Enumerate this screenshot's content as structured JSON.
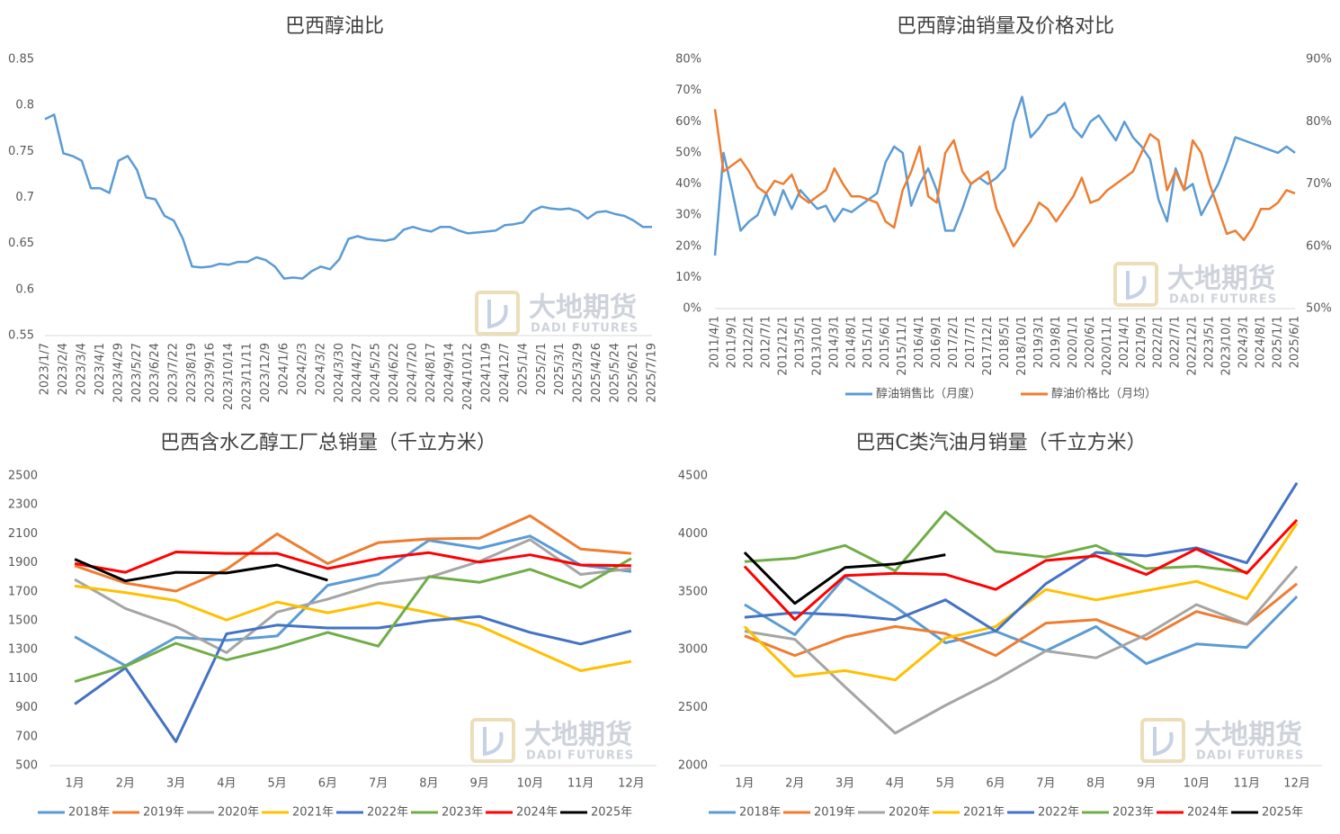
{
  "watermark": {
    "cn": "大地期货",
    "en": "DADI FUTURES"
  },
  "chart_data": [
    {
      "type": "line",
      "title": "巴西醇油比",
      "color": "#5b9bd5",
      "categories": [
        "2023/1/7",
        null,
        "2023/2/4",
        null,
        "2023/3/4",
        null,
        "2023/4/1",
        null,
        "2023/4/29",
        null,
        "2023/5/27",
        null,
        "2023/6/24",
        null,
        "2023/7/22",
        null,
        "2023/8/19",
        null,
        "2023/9/16",
        null,
        "2023/10/14",
        null,
        "2023/11/11",
        null,
        "2023/12/9",
        null,
        "2024/1/6",
        null,
        "2024/2/3",
        null,
        "2024/3/2",
        null,
        "2024/3/30",
        null,
        "2024/4/27",
        null,
        "2024/5/25",
        null,
        "2024/6/22",
        null,
        "2024/7/20",
        null,
        "2024/8/17",
        null,
        "2024/9/14",
        null,
        "2024/10/12",
        null,
        "2024/11/9",
        null,
        "2024/12/7",
        null,
        "2025/1/4",
        null,
        "2025/2/1",
        null,
        "2025/3/1",
        null,
        "2025/3/29",
        null,
        "2025/4/26",
        null,
        "2025/5/24",
        null,
        "2025/6/21",
        null,
        "2025/7/19"
      ],
      "values": [
        0.785,
        0.79,
        0.748,
        0.745,
        0.74,
        0.71,
        0.71,
        0.705,
        0.74,
        0.745,
        0.73,
        0.7,
        0.698,
        0.68,
        0.675,
        0.655,
        0.625,
        0.624,
        0.625,
        0.628,
        0.627,
        0.63,
        0.63,
        0.635,
        0.632,
        0.625,
        0.612,
        0.613,
        0.612,
        0.62,
        0.625,
        0.622,
        0.633,
        0.655,
        0.658,
        0.655,
        0.654,
        0.653,
        0.655,
        0.665,
        0.668,
        0.665,
        0.663,
        0.668,
        0.668,
        0.664,
        0.661,
        0.662,
        0.663,
        0.664,
        0.67,
        0.671,
        0.673,
        0.685,
        0.69,
        0.688,
        0.687,
        0.688,
        0.685,
        0.677,
        0.684,
        0.685,
        0.682,
        0.68,
        0.675,
        0.668,
        0.668
      ],
      "ylim": [
        0.55,
        0.85
      ],
      "yticks": [
        0.55,
        0.6,
        0.65,
        0.7,
        0.75,
        0.8,
        0.85
      ]
    },
    {
      "type": "line",
      "title": "巴西醇油销量及价格对比",
      "legend": "bottom",
      "categories": [
        "2011/4/1",
        null,
        "2011/9/1",
        null,
        "2012/2/1",
        null,
        "2012/7/1",
        null,
        "2012/12/1",
        null,
        "2013/5/1",
        null,
        "2013/10/1",
        null,
        "2014/3/1",
        null,
        "2014/8/1",
        null,
        "2015/1/1",
        null,
        "2015/6/1",
        null,
        "2015/11/1",
        null,
        "2016/4/1",
        null,
        "2016/9/1",
        null,
        "2017/2/1",
        null,
        "2017/7/1",
        null,
        "2017/12/1",
        null,
        "2018/5/1",
        null,
        "2018/10/1",
        null,
        "2019/3/1",
        null,
        "2019/8/1",
        null,
        "2020/1/1",
        null,
        "2020/6/1",
        null,
        "2020/11/1",
        null,
        "2021/4/1",
        null,
        "2021/9/1",
        null,
        "2022/2/1",
        null,
        "2022/7/1",
        null,
        "2022/12/1",
        null,
        "2023/5/1",
        null,
        "2023/10/1",
        null,
        "2024/3/1",
        null,
        "2024/8/1",
        null,
        "2025/1/1",
        null,
        "2025/6/1"
      ],
      "series": [
        {
          "name": "醇油销售比（月度）",
          "color": "#5b9bd5",
          "values": [
            17,
            50,
            38,
            25,
            28,
            30,
            37,
            30,
            38,
            32,
            38,
            35,
            32,
            33,
            28,
            32,
            31,
            33,
            35,
            37,
            47,
            52,
            50,
            33,
            40,
            45,
            38,
            25,
            25,
            32,
            40,
            42,
            40,
            42,
            45,
            60,
            68,
            55,
            58,
            62,
            63,
            66,
            58,
            55,
            60,
            62,
            58,
            54,
            60,
            55,
            52,
            48,
            35,
            28,
            45,
            38,
            40,
            30,
            35,
            40,
            47,
            55,
            54,
            53,
            52,
            51,
            50,
            52,
            50
          ]
        },
        {
          "name": "醇油价格比（月均）",
          "color": "#ed7d31",
          "axis": "y2",
          "values": [
            82,
            72,
            73,
            74,
            72,
            69.5,
            68.5,
            70.5,
            70,
            71.5,
            68,
            67,
            68,
            69,
            72.5,
            70,
            68,
            68,
            67.5,
            67,
            64,
            63,
            69,
            72,
            76,
            68,
            67,
            75,
            77,
            72,
            70,
            71,
            72,
            66,
            63,
            60,
            62,
            64,
            67,
            66,
            64,
            66,
            68,
            71,
            67,
            67.5,
            69,
            70,
            71,
            72,
            75,
            78,
            77,
            69,
            72,
            69,
            77,
            75,
            70,
            66,
            62,
            62.5,
            61,
            63,
            66,
            66,
            67,
            69,
            68.5
          ]
        }
      ],
      "ylim": [
        0,
        80
      ],
      "yticks": [
        {
          "value": 0,
          "label": "0%"
        },
        {
          "value": 10,
          "label": "10%"
        },
        {
          "value": 20,
          "label": "20%"
        },
        {
          "value": 30,
          "label": "30%"
        },
        {
          "value": 40,
          "label": "40%"
        },
        {
          "value": 50,
          "label": "50%"
        },
        {
          "value": 60,
          "label": "60%"
        },
        {
          "value": 70,
          "label": "70%"
        },
        {
          "value": 80,
          "label": "80%"
        }
      ],
      "y2lim": [
        50,
        90
      ],
      "y2ticks": [
        {
          "value": 50,
          "label": "50%"
        },
        {
          "value": 60,
          "label": "60%"
        },
        {
          "value": 70,
          "label": "70%"
        },
        {
          "value": 80,
          "label": "80%"
        },
        {
          "value": 90,
          "label": "90%"
        }
      ]
    },
    {
      "type": "line",
      "title": "巴西含水乙醇工厂总销量（千立方米）",
      "legend": "bottom",
      "categories": [
        "1月",
        "2月",
        "3月",
        "4月",
        "5月",
        "6月",
        "7月",
        "8月",
        "9月",
        "10月",
        "11月",
        "12月"
      ],
      "series": [
        {
          "name": "2018年",
          "color": "#5b9bd5",
          "values": [
            1390,
            1190,
            1385,
            1365,
            1395,
            1745,
            1820,
            2055,
            2000,
            2085,
            1885,
            1840
          ]
        },
        {
          "name": "2019年",
          "color": "#ed7d31",
          "values": [
            1880,
            1760,
            1705,
            1855,
            2100,
            1895,
            2040,
            2065,
            2070,
            2225,
            1995,
            1965
          ]
        },
        {
          "name": "2020年",
          "color": "#a5a5a5",
          "values": [
            1785,
            1585,
            1460,
            1280,
            1560,
            1650,
            1755,
            1800,
            1910,
            2060,
            1820,
            1860
          ]
        },
        {
          "name": "2021年",
          "color": "#ffc000",
          "values": [
            1740,
            1695,
            1640,
            1505,
            1630,
            1555,
            1625,
            1555,
            1465,
            1310,
            1155,
            1220
          ]
        },
        {
          "name": "2022年",
          "color": "#4472c4",
          "values": [
            925,
            1175,
            665,
            1410,
            1470,
            1450,
            1450,
            1500,
            1530,
            1420,
            1340,
            1430
          ]
        },
        {
          "name": "2023年",
          "color": "#70ad47",
          "values": [
            1080,
            1185,
            1345,
            1230,
            1315,
            1420,
            1325,
            1805,
            1765,
            1855,
            1730,
            1930
          ]
        },
        {
          "name": "2024年",
          "color": "#ff0000",
          "values": [
            1895,
            1835,
            1975,
            1965,
            1965,
            1860,
            1930,
            1970,
            1905,
            1955,
            1885,
            1880
          ]
        },
        {
          "name": "2025年",
          "color": "#000000",
          "values": [
            1925,
            1775,
            1835,
            1830,
            1885,
            1780,
            null,
            null,
            null,
            null,
            null,
            null
          ]
        }
      ],
      "ylim": [
        500,
        2500
      ],
      "yticks": [
        500,
        700,
        900,
        1100,
        1300,
        1500,
        1700,
        1900,
        2100,
        2300,
        2500
      ]
    },
    {
      "type": "line",
      "title": "巴西C类汽油月销量（千立方米）",
      "legend": "bottom",
      "categories": [
        "1月",
        "2月",
        "3月",
        "4月",
        "5月",
        "6月",
        "7月",
        "8月",
        "9月",
        "10月",
        "11月",
        "12月"
      ],
      "series": [
        {
          "name": "2018年",
          "color": "#5b9bd5",
          "values": [
            3390,
            3130,
            3630,
            3370,
            3060,
            3160,
            2990,
            3200,
            2880,
            3050,
            3020,
            3460
          ]
        },
        {
          "name": "2019年",
          "color": "#ed7d31",
          "values": [
            3120,
            2950,
            3110,
            3200,
            3140,
            2950,
            3230,
            3260,
            3090,
            3330,
            3220,
            3570
          ]
        },
        {
          "name": "2020年",
          "color": "#a5a5a5",
          "values": [
            3160,
            3090,
            2680,
            2280,
            2520,
            2740,
            2990,
            2930,
            3130,
            3390,
            3220,
            3720
          ]
        },
        {
          "name": "2021年",
          "color": "#ffc000",
          "values": [
            3200,
            2770,
            2820,
            2740,
            3100,
            3200,
            3520,
            3430,
            3510,
            3590,
            3440,
            4090
          ]
        },
        {
          "name": "2022年",
          "color": "#4472c4",
          "values": [
            3280,
            3320,
            3300,
            3260,
            3430,
            3160,
            3570,
            3840,
            3810,
            3880,
            3750,
            4440
          ]
        },
        {
          "name": "2023年",
          "color": "#70ad47",
          "values": [
            3760,
            3790,
            3900,
            3680,
            4190,
            3850,
            3800,
            3900,
            3700,
            3720,
            3670,
            null
          ]
        },
        {
          "name": "2024年",
          "color": "#ff0000",
          "values": [
            3720,
            3260,
            3640,
            3660,
            3650,
            3520,
            3770,
            3810,
            3650,
            3870,
            3660,
            4120
          ]
        },
        {
          "name": "2025年",
          "color": "#000000",
          "values": [
            3840,
            3400,
            3710,
            3740,
            3820,
            null,
            null,
            null,
            null,
            null,
            null,
            null
          ]
        }
      ],
      "ylim": [
        2000,
        4500
      ],
      "yticks": [
        2000,
        2500,
        3000,
        3500,
        4000,
        4500
      ]
    }
  ]
}
